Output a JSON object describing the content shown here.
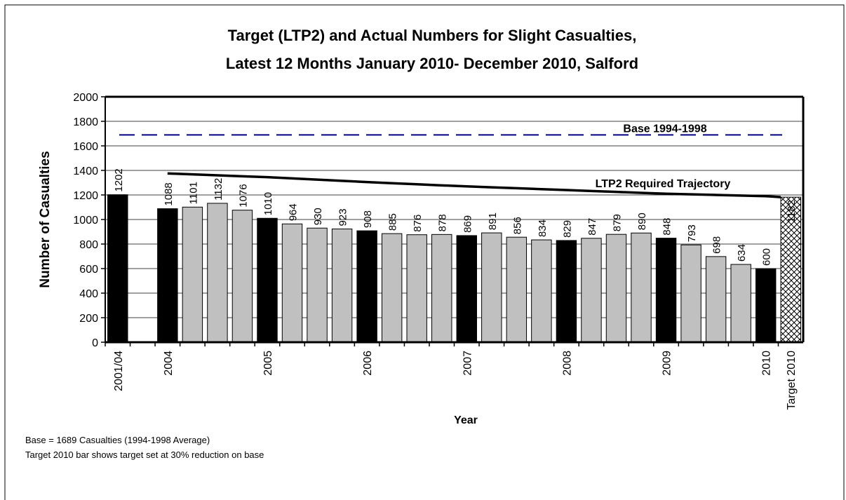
{
  "chart_data": {
    "type": "bar",
    "title": [
      "Target (LTP2) and Actual Numbers for Slight Casualties,",
      "Latest 12 Months January 2010- December 2010, Salford"
    ],
    "x_label": "Year",
    "y_label": "Number of Casualties",
    "categories": [
      "2001/04",
      null,
      "2004",
      null,
      null,
      null,
      "2005",
      null,
      null,
      null,
      "2006",
      null,
      null,
      null,
      "2007",
      null,
      null,
      null,
      "2008",
      null,
      null,
      null,
      "2009",
      null,
      null,
      null,
      "2010",
      "Target 2010"
    ],
    "series": [
      {
        "color": "#000000",
        "values": [
          1202,
          null,
          1088,
          null,
          null,
          null,
          1010,
          null,
          null,
          null,
          908,
          null,
          null,
          null,
          869,
          null,
          null,
          null,
          829,
          null,
          null,
          null,
          848,
          null,
          null,
          null,
          600,
          null
        ]
      },
      {
        "color": "#c0c0c0",
        "values": [
          null,
          null,
          null,
          1101,
          1132,
          1076,
          null,
          964,
          930,
          923,
          null,
          885,
          876,
          878,
          null,
          891,
          856,
          834,
          null,
          847,
          879,
          890,
          null,
          793,
          698,
          634,
          null,
          null
        ]
      },
      {
        "color": "#ffffff",
        "pattern": "crosshatch",
        "values": [
          null,
          null,
          null,
          null,
          null,
          null,
          null,
          null,
          null,
          null,
          null,
          null,
          null,
          null,
          null,
          null,
          null,
          null,
          null,
          null,
          null,
          null,
          null,
          null,
          null,
          null,
          null,
          1182
        ]
      },
      {
        "type": "line",
        "name": "LTP2 Required Trajectory",
        "color": "#000000",
        "values": [
          null,
          null,
          1375,
          1368,
          1360,
          1352,
          1345,
          1335,
          1325,
          1315,
          1305,
          1296,
          1287,
          1278,
          1270,
          1262,
          1255,
          1247,
          1240,
          1232,
          1225,
          1217,
          1210,
          1205,
          1200,
          1195,
          1190,
          1182
        ]
      }
    ],
    "reference_lines": [
      {
        "label": "Base 1994-1998",
        "value": 1689,
        "color": "#000080",
        "dashed": true
      }
    ],
    "ylim": [
      0,
      2000
    ],
    "yticks": [
      0,
      200,
      400,
      600,
      800,
      1000,
      1200,
      1400,
      1600,
      1800,
      2000
    ],
    "grid": true,
    "notes": [
      "Base = 1689 Casualties (1994-1998 Average)",
      "Target 2010 bar shows target set at 30% reduction on base"
    ]
  }
}
